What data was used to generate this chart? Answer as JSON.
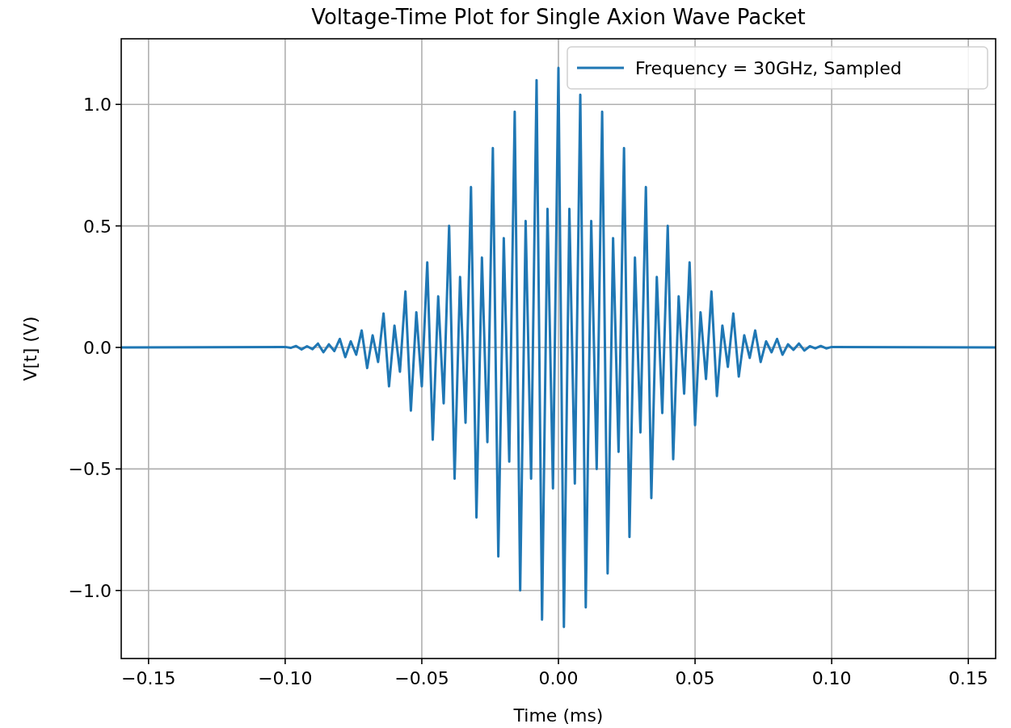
{
  "chart_data": {
    "type": "line",
    "title": "Voltage-Time Plot for Single Axion Wave Packet",
    "xlabel": "Time (ms)",
    "ylabel": "V[t] (V)",
    "xlim": [
      -0.16,
      0.16
    ],
    "ylim": [
      -1.28,
      1.27
    ],
    "xticks": [
      {
        "value": -0.15,
        "label": "−0.15"
      },
      {
        "value": -0.1,
        "label": "−0.10"
      },
      {
        "value": -0.05,
        "label": "−0.05"
      },
      {
        "value": 0,
        "label": "0.00"
      },
      {
        "value": 0.05,
        "label": "0.05"
      },
      {
        "value": 0.1,
        "label": "0.10"
      },
      {
        "value": 0.15,
        "label": "0.15"
      }
    ],
    "yticks": [
      {
        "value": -1,
        "label": "−1.0"
      },
      {
        "value": -0.5,
        "label": "−0.5"
      },
      {
        "value": 0,
        "label": "0.0"
      },
      {
        "value": 0.5,
        "label": "0.5"
      },
      {
        "value": 1,
        "label": "1.0"
      }
    ],
    "grid": true,
    "legend": "top right",
    "line_style": "solid",
    "marker": "none",
    "x": [
      -0.16,
      -0.1,
      -0.098,
      -0.096,
      -0.094,
      -0.092,
      -0.09,
      -0.088,
      -0.086,
      -0.084,
      -0.082,
      -0.08,
      -0.078,
      -0.076,
      -0.074,
      -0.072,
      -0.07,
      -0.068,
      -0.066,
      -0.064,
      -0.062,
      -0.06,
      -0.058,
      -0.056,
      -0.054,
      -0.052,
      -0.05,
      -0.048,
      -0.046,
      -0.044,
      -0.042,
      -0.04,
      -0.038,
      -0.036,
      -0.034,
      -0.032,
      -0.03,
      -0.028,
      -0.026,
      -0.024,
      -0.022,
      -0.02,
      -0.018,
      -0.016,
      -0.014,
      -0.012,
      -0.01,
      -0.008,
      -0.006,
      -0.004,
      -0.002,
      0,
      0.002,
      0.004,
      0.006,
      0.008,
      0.01,
      0.012,
      0.014,
      0.016,
      0.018,
      0.02,
      0.022,
      0.024,
      0.026,
      0.028,
      0.03,
      0.032,
      0.034,
      0.036,
      0.038,
      0.04,
      0.042,
      0.044,
      0.046,
      0.048,
      0.05,
      0.052,
      0.054,
      0.056,
      0.058,
      0.06,
      0.062,
      0.064,
      0.066,
      0.068,
      0.07,
      0.072,
      0.074,
      0.076,
      0.078,
      0.08,
      0.082,
      0.084,
      0.086,
      0.088,
      0.09,
      0.092,
      0.094,
      0.096,
      0.098,
      0.1,
      0.16
    ],
    "series": [
      {
        "name": "Frequency = 30GHz, Sampled",
        "color": "#1f77b4",
        "values": [
          0,
          0.002,
          -0.002,
          0.006,
          -0.008,
          0.005,
          -0.007,
          0.016,
          -0.02,
          0.013,
          -0.015,
          0.035,
          -0.04,
          0.025,
          -0.03,
          0.07,
          -0.085,
          0.05,
          -0.06,
          0.14,
          -0.16,
          0.09,
          -0.1,
          0.23,
          -0.26,
          0.145,
          -0.16,
          0.35,
          -0.38,
          0.21,
          -0.23,
          0.5,
          -0.54,
          0.29,
          -0.31,
          0.66,
          -0.7,
          0.37,
          -0.39,
          0.82,
          -0.86,
          0.45,
          -0.47,
          0.97,
          -1.0,
          0.52,
          -0.54,
          1.1,
          -1.12,
          0.57,
          -0.58,
          1.15,
          -1.15,
          0.57,
          -0.56,
          1.04,
          -1.07,
          0.52,
          -0.5,
          0.97,
          -0.93,
          0.45,
          -0.43,
          0.82,
          -0.78,
          0.37,
          -0.35,
          0.66,
          -0.62,
          0.29,
          -0.27,
          0.5,
          -0.46,
          0.21,
          -0.19,
          0.35,
          -0.32,
          0.145,
          -0.13,
          0.23,
          -0.2,
          0.09,
          -0.08,
          0.14,
          -0.12,
          0.05,
          -0.043,
          0.07,
          -0.06,
          0.025,
          -0.02,
          0.035,
          -0.03,
          0.013,
          -0.01,
          0.016,
          -0.013,
          0.005,
          -0.004,
          0.006,
          -0.004,
          0.002,
          0
        ]
      }
    ]
  }
}
